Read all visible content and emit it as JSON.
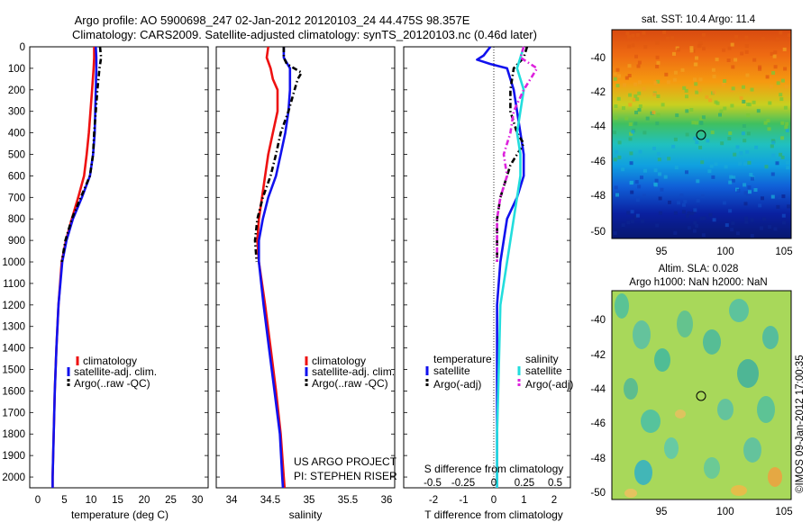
{
  "header": {
    "line1": "Argo profile: AO 5900698_247 02-Jan-2012 20120103_24 44.475S 98.357E",
    "line2": "Climatology: CARS2009. Satellite-adjusted climatology: synTS_20120103.nc (0.46d later)"
  },
  "colors": {
    "red": "#ee1111",
    "blue": "#1111ee",
    "black": "#000000",
    "cyan": "#22dddd",
    "magenta": "#dd22dd"
  },
  "depth_ticks": [
    0,
    100,
    200,
    300,
    400,
    500,
    600,
    700,
    800,
    900,
    1000,
    1100,
    1200,
    1300,
    1400,
    1500,
    1600,
    1700,
    1800,
    1900,
    2000
  ],
  "panels": {
    "temperature": {
      "xlabel": "temperature (deg C)",
      "xticks": [
        "0",
        "5",
        "10",
        "15",
        "20",
        "25",
        "30"
      ],
      "xlim": [
        -2,
        31.5
      ],
      "legend": [
        "climatology",
        "satellite-adj. clim.",
        "Argo(..raw -QC)"
      ]
    },
    "salinity": {
      "xlabel": "salinity",
      "xticks": [
        "34",
        "34.5",
        "35",
        "35.5",
        "36"
      ],
      "xlim": [
        33.85,
        36.15
      ],
      "legend": [
        "climatology",
        "satellite-adj. clim.",
        "Argo(..raw -QC)"
      ],
      "credit1": "US ARGO PROJECT",
      "credit2": "PI: STEPHEN RISER"
    },
    "difference": {
      "xlabel": "T difference from climatology",
      "top_label": "S difference from climatology",
      "s_ticks": [
        "-0.5",
        "-0.25",
        "0",
        "0.25",
        "0.5"
      ],
      "t_ticks": [
        "-2",
        "-1",
        "0",
        "1",
        "2"
      ],
      "xlim": [
        -2.8,
        2.2
      ],
      "legend_temp_head": "temperature",
      "legend_sal_head": "salinity",
      "legend_items": [
        "satellite",
        "Argo(-adj)",
        "satellite",
        "Argo(-adj)"
      ]
    },
    "sst_map": {
      "title": "sat. SST: 10.4 Argo: 11.4",
      "yticks": [
        "-40",
        "-42",
        "-44",
        "-46",
        "-48",
        "-50"
      ],
      "xticks": [
        "95",
        "100",
        "105"
      ]
    },
    "sla_map": {
      "title1": "Altim. SLA: 0.028",
      "title2": "Argo h1000: NaN h2000: NaN",
      "yticks": [
        "-40",
        "-42",
        "-44",
        "-46",
        "-48",
        "-50"
      ],
      "xticks": [
        "95",
        "100",
        "105"
      ]
    }
  },
  "footer": {
    "imos": "©IMOS 09-Jan-2012 17:00:35"
  },
  "chart_data": [
    {
      "type": "line",
      "ylabel": "",
      "xlabel": "temperature (deg C)",
      "xlim": [
        -2,
        31.5
      ],
      "ylim": [
        2050,
        0
      ],
      "series": [
        {
          "name": "climatology",
          "color": "red",
          "depth": [
            0,
            50,
            100,
            200,
            300,
            400,
            500,
            600,
            700,
            800,
            900,
            1000,
            1200,
            1400,
            1600,
            1800,
            2000,
            2050
          ],
          "values": [
            10.1,
            10.1,
            10.0,
            9.7,
            9.4,
            9.1,
            8.7,
            8.2,
            7.1,
            5.9,
            4.8,
            4.0,
            3.4,
            3.0,
            2.7,
            2.5,
            2.3,
            2.3
          ]
        },
        {
          "name": "satellite-adj. clim.",
          "color": "blue",
          "depth": [
            0,
            50,
            100,
            200,
            300,
            400,
            500,
            600,
            700,
            800,
            900,
            1000,
            1200,
            1400,
            1600,
            1800,
            2000,
            2050
          ],
          "values": [
            10.4,
            10.5,
            10.5,
            10.4,
            10.3,
            10.2,
            9.9,
            9.3,
            7.8,
            6.1,
            4.9,
            4.1,
            3.4,
            3.0,
            2.7,
            2.5,
            2.3,
            2.3
          ]
        },
        {
          "name": "Argo(..raw -QC)",
          "color": "black",
          "dash": true,
          "depth": [
            0,
            50,
            100,
            200,
            300,
            400,
            500,
            600,
            700,
            800,
            900,
            1000
          ],
          "values": [
            11.2,
            11.4,
            11.1,
            10.7,
            10.4,
            10.1,
            9.9,
            9.3,
            7.6,
            5.9,
            4.7,
            4.0
          ]
        }
      ]
    },
    {
      "type": "line",
      "xlabel": "salinity",
      "xlim": [
        33.85,
        36.15
      ],
      "ylim": [
        2050,
        0
      ],
      "series": [
        {
          "name": "climatology",
          "color": "red",
          "depth": [
            0,
            50,
            100,
            150,
            200,
            300,
            400,
            500,
            600,
            700,
            800,
            900,
            1000,
            1200,
            1400,
            1600,
            1800,
            2000,
            2050
          ],
          "values": [
            34.52,
            34.5,
            34.55,
            34.58,
            34.64,
            34.64,
            34.58,
            34.52,
            34.48,
            34.44,
            34.4,
            34.38,
            34.4,
            34.48,
            34.55,
            34.62,
            34.68,
            34.72,
            34.73
          ]
        },
        {
          "name": "satellite-adj. clim.",
          "color": "blue",
          "depth": [
            0,
            50,
            100,
            200,
            300,
            400,
            500,
            600,
            700,
            800,
            900,
            1000,
            1200,
            1400,
            1600,
            1800,
            2000,
            2050
          ],
          "values": [
            34.72,
            34.72,
            34.8,
            34.8,
            34.78,
            34.74,
            34.68,
            34.62,
            34.52,
            34.45,
            34.4,
            34.4,
            34.46,
            34.53,
            34.6,
            34.67,
            34.7,
            34.71
          ]
        },
        {
          "name": "Argo(..raw -QC)",
          "color": "black",
          "dash": true,
          "depth": [
            0,
            50,
            80,
            120,
            150,
            200,
            300,
            400,
            500,
            600,
            700,
            800,
            900,
            1000
          ],
          "values": [
            34.72,
            34.72,
            34.76,
            34.95,
            34.9,
            34.86,
            34.78,
            34.68,
            34.62,
            34.55,
            34.45,
            34.38,
            34.35,
            34.37
          ]
        }
      ]
    },
    {
      "type": "line",
      "xlabel": "T difference from climatology",
      "xlim": [
        -2.8,
        2.2
      ],
      "ylim": [
        2050,
        0
      ],
      "series": [
        {
          "name": "satellite",
          "group": "temperature",
          "color": "blue",
          "depth": [
            0,
            40,
            60,
            80,
            100,
            200,
            300,
            400,
            500,
            600,
            700,
            800,
            1000,
            1200,
            1500,
            1800,
            2050
          ],
          "values": [
            -0.2,
            -0.4,
            -0.6,
            -0.2,
            0.3,
            0.5,
            0.6,
            0.7,
            0.8,
            0.8,
            0.6,
            0.3,
            0.1,
            0.0,
            0.0,
            0.0,
            0.0
          ]
        },
        {
          "name": "Argo(-adj)",
          "group": "temperature",
          "color": "black",
          "dash": true,
          "depth": [
            0,
            50,
            100,
            200,
            300,
            400,
            450,
            500,
            550,
            600,
            700,
            800,
            900,
            1000
          ],
          "values": [
            0.9,
            0.8,
            0.5,
            0.4,
            0.4,
            0.6,
            0.8,
            0.6,
            0.4,
            0.3,
            0.1,
            0.0,
            0.0,
            0.0
          ]
        },
        {
          "name": "satellite",
          "group": "salinity",
          "color": "cyan",
          "depth": [
            0,
            50,
            100,
            200,
            300,
            400,
            500,
            600,
            700,
            800,
            1000,
            1200,
            1500,
            1800,
            2050
          ],
          "values": [
            0.8,
            0.7,
            0.6,
            0.8,
            0.7,
            0.6,
            0.7,
            0.7,
            0.6,
            0.5,
            0.3,
            0.1,
            0.05,
            0.0,
            0.0
          ]
        },
        {
          "name": "Argo(-adj)",
          "group": "salinity",
          "color": "magenta",
          "dash": true,
          "depth": [
            0,
            50,
            100,
            150,
            200,
            300,
            400,
            500,
            600,
            700,
            800,
            900,
            1000
          ],
          "values": [
            0.8,
            0.7,
            1.2,
            1.0,
            0.8,
            0.5,
            0.4,
            0.2,
            0.3,
            0.1,
            0.0,
            0.0,
            0.0
          ]
        }
      ]
    }
  ]
}
